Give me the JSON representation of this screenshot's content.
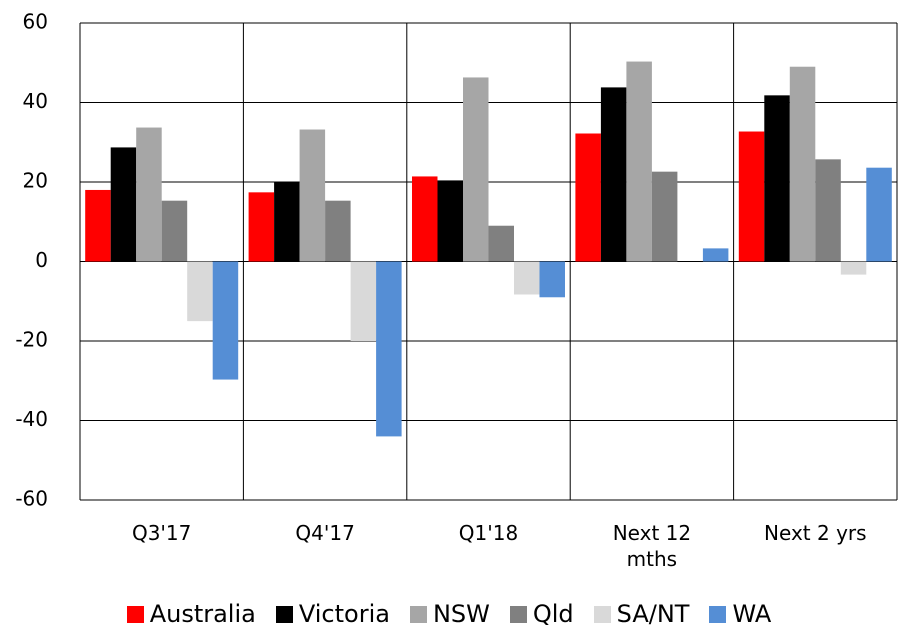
{
  "chart_data": {
    "type": "bar",
    "categories": [
      "Q3'17",
      "Q4'17",
      "Q1'18",
      "Next 12 mths",
      "Next 2 yrs"
    ],
    "series": [
      {
        "name": "Australia",
        "color": "#ff0000",
        "values": [
          18,
          17.4,
          21.4,
          32.2,
          32.7
        ]
      },
      {
        "name": "Victoria",
        "color": "#000000",
        "values": [
          28.7,
          20,
          20.4,
          43.8,
          41.8
        ]
      },
      {
        "name": "NSW",
        "color": "#a6a6a6",
        "values": [
          33.7,
          33.2,
          46.3,
          50.3,
          49
        ]
      },
      {
        "name": "Qld",
        "color": "#808080",
        "values": [
          15.3,
          15.3,
          9,
          22.6,
          25.7
        ]
      },
      {
        "name": "SA/NT",
        "color": "#d9d9d9",
        "values": [
          -15,
          -20,
          -8.3,
          0,
          -3.3
        ]
      },
      {
        "name": "WA",
        "color": "#558ed5",
        "values": [
          -29.7,
          -44,
          -9,
          3.3,
          23.6
        ]
      }
    ],
    "ylim": [
      -60,
      60
    ],
    "yticks": [
      -60,
      -40,
      -20,
      0,
      20,
      40,
      60
    ],
    "grid": true
  }
}
